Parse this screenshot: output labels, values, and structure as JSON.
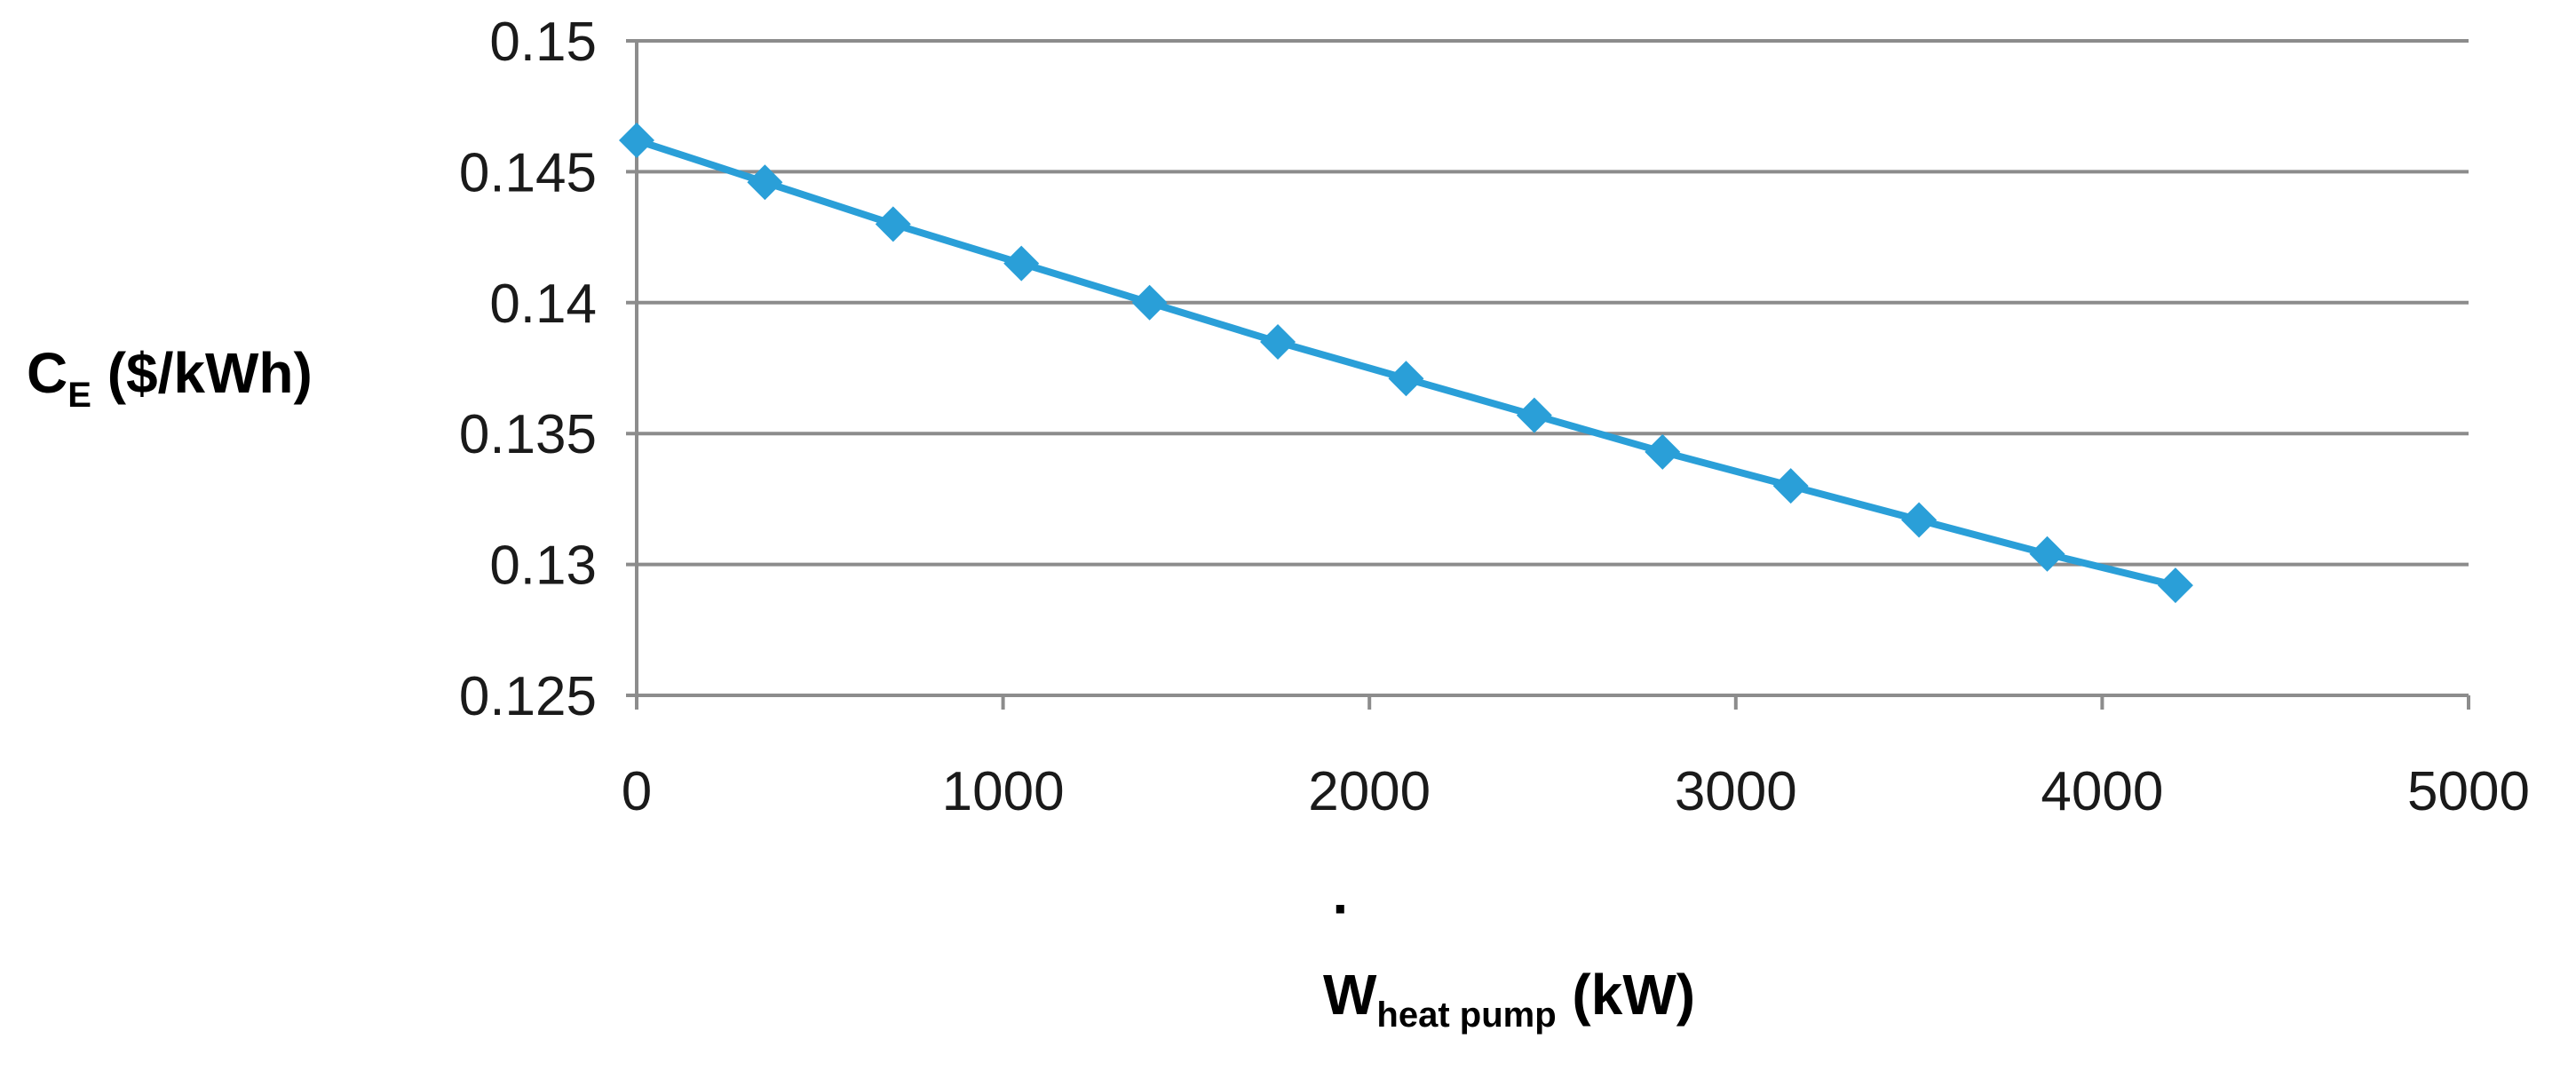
{
  "chart_data": {
    "type": "line",
    "title": "",
    "xlabel": {
      "main": "W",
      "sub": "heat pump",
      "unit": " (kW)",
      "accent": "·"
    },
    "ylabel": {
      "main": "C",
      "sub": "E",
      "unit": " ($/kWh)"
    },
    "xlim": [
      0,
      5000
    ],
    "ylim": [
      0.125,
      0.15
    ],
    "xticks": [
      0,
      1000,
      2000,
      3000,
      4000,
      5000
    ],
    "xtick_labels": [
      "0",
      "1000",
      "2000",
      "3000",
      "4000",
      "5000"
    ],
    "yticks": [
      0.125,
      0.13,
      0.135,
      0.14,
      0.145,
      0.15
    ],
    "ytick_labels": [
      "0.125",
      "0.13",
      "0.135",
      "0.14",
      "0.145",
      "0.15"
    ],
    "grid": "horizontal",
    "series": [
      {
        "name": "C_E",
        "color": "#2A9FD8",
        "marker": "diamond",
        "x": [
          0,
          350,
          700,
          1050,
          1400,
          1750,
          2100,
          2450,
          2800,
          3150,
          3500,
          3850,
          4200
        ],
        "values": [
          0.1462,
          0.1446,
          0.143,
          0.1415,
          0.14,
          0.1385,
          0.1371,
          0.1357,
          0.1343,
          0.133,
          0.1317,
          0.1304,
          0.1292
        ]
      }
    ],
    "colors": {
      "grid": "#8C8C8C",
      "axis": "#8C8C8C"
    }
  }
}
